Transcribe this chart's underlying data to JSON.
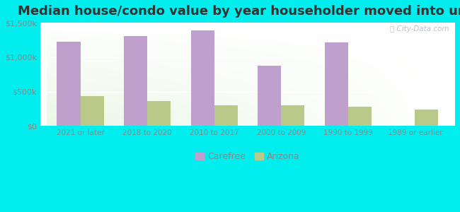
{
  "title": "Median house/condo value by year householder moved into unit",
  "categories": [
    "2021 or later",
    "2018 to 2020",
    "2010 to 2017",
    "2000 to 2009",
    "1990 to 1999",
    "1989 or earlier"
  ],
  "carefree_values": [
    1220000,
    1305000,
    1385000,
    870000,
    1215000,
    0
  ],
  "arizona_values": [
    430000,
    360000,
    305000,
    300000,
    285000,
    240000
  ],
  "carefree_color": "#bf9fcc",
  "arizona_color": "#b8c98a",
  "background_color": "#00eeee",
  "ylim": [
    0,
    1500000
  ],
  "yticks": [
    0,
    500000,
    1000000,
    1500000
  ],
  "ytick_labels": [
    "$0",
    "$500k",
    "$1,000k",
    "$1,500k"
  ],
  "bar_width": 0.35,
  "title_fontsize": 13,
  "watermark": "City-Data.com",
  "legend_labels": [
    "Carefree",
    "Arizona"
  ]
}
